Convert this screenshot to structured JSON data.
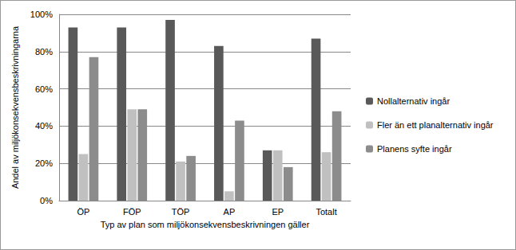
{
  "chart_data": {
    "type": "bar",
    "categories": [
      "ÖP",
      "FÖP",
      "TÖP",
      "AP",
      "EP",
      "Totalt"
    ],
    "series": [
      {
        "name": "Nollalternativ ingår",
        "color": "#595959",
        "values": [
          93,
          93,
          97,
          83,
          27,
          87
        ]
      },
      {
        "name": "Fler än ett planalternativ ingår",
        "color": "#c0c0c0",
        "values": [
          25,
          49,
          21,
          5,
          27,
          26
        ]
      },
      {
        "name": "Planens syfte ingår",
        "color": "#8c8c8c",
        "values": [
          77,
          49,
          24,
          43,
          18,
          48
        ]
      }
    ],
    "x_label": "Typ av plan som miljökonsekvensbeskrivningen gäller",
    "y_label": "Andel av miljökonsekvensbeskrivningarna",
    "ylim": [
      0,
      100
    ],
    "yticks": [
      {
        "value": 0,
        "label": "0%"
      },
      {
        "value": 20,
        "label": "20%"
      },
      {
        "value": 40,
        "label": "40%"
      },
      {
        "value": 60,
        "label": "60%"
      },
      {
        "value": 80,
        "label": "80%"
      },
      {
        "value": 100,
        "label": "100%"
      }
    ],
    "grid": true,
    "legend": "right"
  }
}
